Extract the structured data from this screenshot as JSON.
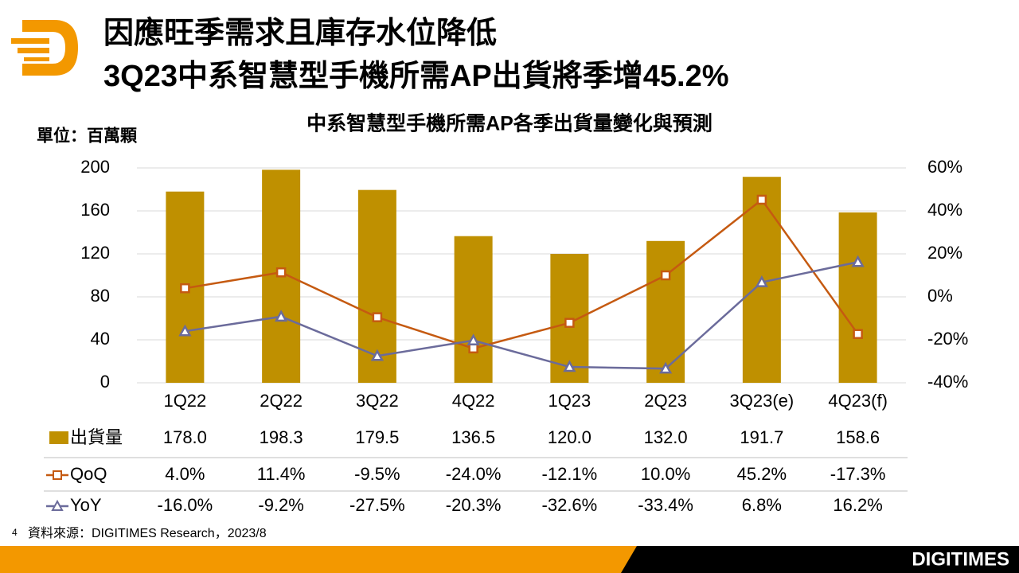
{
  "header": {
    "title_line1": "因應旺季需求且庫存水位降低",
    "title_line2": "3Q23中系智慧型手機所需AP出貨將季增45.2%"
  },
  "page_number": "4",
  "source": "資料來源：DIGITIMES Research，2023/8",
  "brand": "DIGITIMES",
  "chart_data": {
    "type": "combo",
    "title": "中系智慧型手機所需AP各季出貨量變化與預測",
    "y_label": "單位：百萬顆",
    "categories": [
      "1Q22",
      "2Q22",
      "3Q22",
      "4Q22",
      "1Q23",
      "2Q23",
      "3Q23(e)",
      "4Q23(f)"
    ],
    "series": [
      {
        "name": "出貨量",
        "type": "bar",
        "color": "#bf9000",
        "values": [
          178.0,
          198.3,
          179.5,
          136.5,
          120.0,
          132.0,
          191.7,
          158.6
        ],
        "value_labels": [
          "178.0",
          "198.3",
          "179.5",
          "136.5",
          "120.0",
          "132.0",
          "191.7",
          "158.6"
        ]
      },
      {
        "name": "QoQ",
        "type": "line",
        "axis": "y2",
        "color": "#c55a11",
        "marker": "square",
        "values": [
          4.0,
          11.4,
          -9.5,
          -24.0,
          -12.1,
          10.0,
          45.2,
          -17.3
        ],
        "value_labels": [
          "4.0%",
          "11.4%",
          "-9.5%",
          "-24.0%",
          "-12.1%",
          "10.0%",
          "45.2%",
          "-17.3%"
        ]
      },
      {
        "name": "YoY",
        "type": "line",
        "axis": "y2",
        "color": "#6b6b9b",
        "marker": "triangle",
        "values": [
          -16.0,
          -9.2,
          -27.5,
          -20.3,
          -32.6,
          -33.4,
          6.8,
          16.2
        ],
        "value_labels": [
          "-16.0%",
          "-9.2%",
          "-27.5%",
          "-20.3%",
          "-32.6%",
          "-33.4%",
          "6.8%",
          "16.2%"
        ]
      }
    ],
    "ylim": [
      0,
      200
    ],
    "yticks": [
      0,
      40,
      80,
      120,
      160,
      200
    ],
    "y2lim": [
      -40,
      60
    ],
    "y2ticks": [
      {
        "value": -40,
        "label": "-40%"
      },
      {
        "value": -20,
        "label": "-20%"
      },
      {
        "value": 0,
        "label": "0%"
      },
      {
        "value": 20,
        "label": "20%"
      },
      {
        "value": 40,
        "label": "40%"
      },
      {
        "value": 60,
        "label": "60%"
      }
    ],
    "grid": true
  }
}
